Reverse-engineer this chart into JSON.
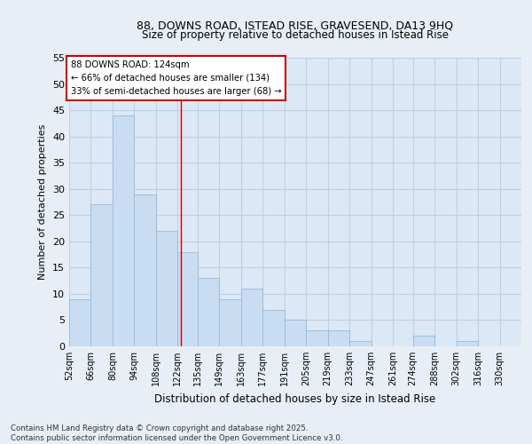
{
  "title1": "88, DOWNS ROAD, ISTEAD RISE, GRAVESEND, DA13 9HQ",
  "title2": "Size of property relative to detached houses in Istead Rise",
  "xlabel": "Distribution of detached houses by size in Istead Rise",
  "ylabel": "Number of detached properties",
  "categories": [
    "52sqm",
    "66sqm",
    "80sqm",
    "94sqm",
    "108sqm",
    "122sqm",
    "135sqm",
    "149sqm",
    "163sqm",
    "177sqm",
    "191sqm",
    "205sqm",
    "219sqm",
    "233sqm",
    "247sqm",
    "261sqm",
    "274sqm",
    "288sqm",
    "302sqm",
    "316sqm",
    "330sqm"
  ],
  "values": [
    9,
    27,
    44,
    29,
    22,
    18,
    13,
    9,
    11,
    7,
    5,
    3,
    3,
    1,
    0,
    0,
    2,
    0,
    1,
    0,
    0
  ],
  "bar_color": "#c9ddf2",
  "bar_edge_color": "#9ab8d8",
  "grid_color": "#c0cfe0",
  "background_color": "#dce8f5",
  "fig_background": "#e8eef6",
  "property_line_x": 124,
  "bin_edges": [
    52,
    66,
    80,
    94,
    108,
    122,
    135,
    149,
    163,
    177,
    191,
    205,
    219,
    233,
    247,
    261,
    274,
    288,
    302,
    316,
    330,
    344
  ],
  "annotation_line1": "88 DOWNS ROAD: 124sqm",
  "annotation_line2": "← 66% of detached houses are smaller (134)",
  "annotation_line3": "33% of semi-detached houses are larger (68) →",
  "footer1": "Contains HM Land Registry data © Crown copyright and database right 2025.",
  "footer2": "Contains public sector information licensed under the Open Government Licence v3.0.",
  "ylim": [
    0,
    55
  ],
  "yticks": [
    0,
    5,
    10,
    15,
    20,
    25,
    30,
    35,
    40,
    45,
    50,
    55
  ]
}
